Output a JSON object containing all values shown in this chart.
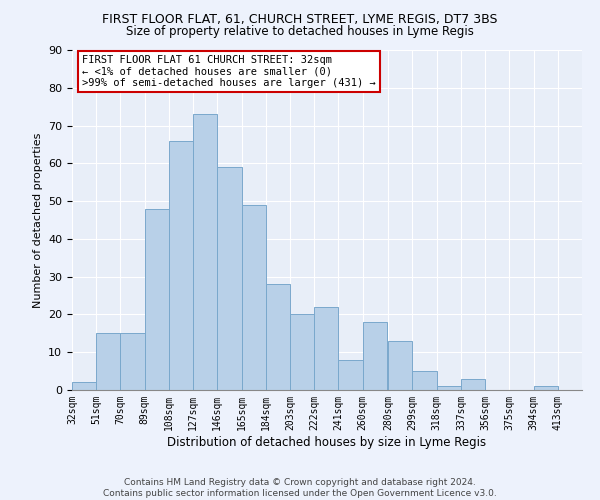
{
  "title": "FIRST FLOOR FLAT, 61, CHURCH STREET, LYME REGIS, DT7 3BS",
  "subtitle": "Size of property relative to detached houses in Lyme Regis",
  "xlabel": "Distribution of detached houses by size in Lyme Regis",
  "ylabel": "Number of detached properties",
  "bar_color": "#b8d0e8",
  "bar_edge_color": "#7aa8cc",
  "background_color": "#e8eef8",
  "grid_color": "#ffffff",
  "categories": [
    "32sqm",
    "51sqm",
    "70sqm",
    "89sqm",
    "108sqm",
    "127sqm",
    "146sqm",
    "165sqm",
    "184sqm",
    "203sqm",
    "222sqm",
    "241sqm",
    "260sqm",
    "280sqm",
    "299sqm",
    "318sqm",
    "337sqm",
    "356sqm",
    "375sqm",
    "394sqm",
    "413sqm"
  ],
  "bar_values": [
    2,
    15,
    15,
    48,
    66,
    73,
    59,
    49,
    28,
    20,
    22,
    8,
    18,
    13,
    5,
    1,
    3,
    0,
    0,
    1
  ],
  "bin_edges": [
    32,
    51,
    70,
    89,
    108,
    127,
    146,
    165,
    184,
    203,
    222,
    241,
    260,
    280,
    299,
    318,
    337,
    356,
    375,
    394,
    413
  ],
  "annotation_title": "FIRST FLOOR FLAT 61 CHURCH STREET: 32sqm",
  "annotation_line2": "← <1% of detached houses are smaller (0)",
  "annotation_line3": ">99% of semi-detached houses are larger (431) →",
  "annotation_box_color": "#ffffff",
  "annotation_edge_color": "#cc0000",
  "ylim": [
    0,
    90
  ],
  "yticks": [
    0,
    10,
    20,
    30,
    40,
    50,
    60,
    70,
    80,
    90
  ],
  "footer_line1": "Contains HM Land Registry data © Crown copyright and database right 2024.",
  "footer_line2": "Contains public sector information licensed under the Open Government Licence v3.0.",
  "fig_bg": "#edf2fc"
}
